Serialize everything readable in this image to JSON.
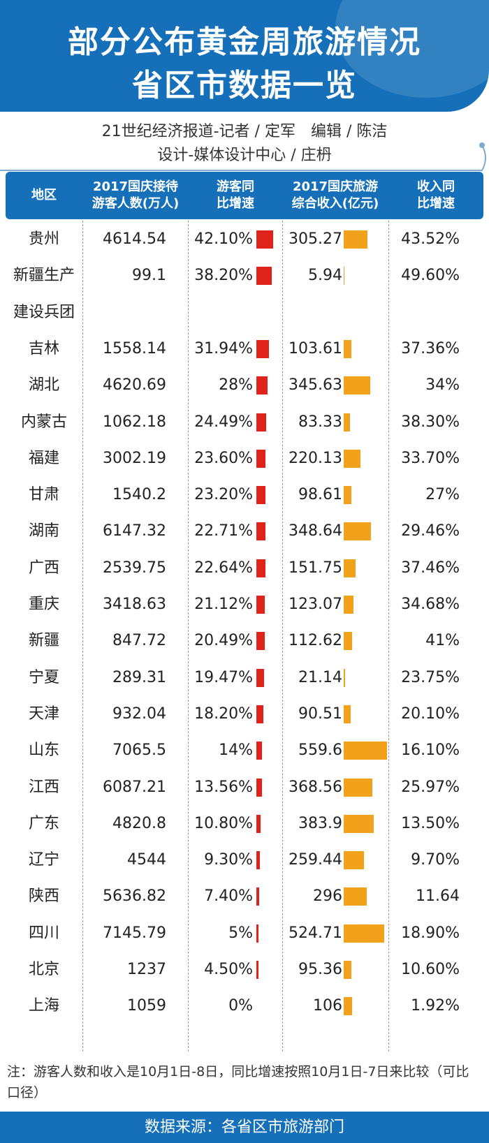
{
  "title": {
    "line1": "部分公布黄金周旅游情况",
    "line2": "省区市数据一览"
  },
  "credits": {
    "line1": "21世纪经济报道-记者 / 定军　编辑 / 陈洁",
    "line2": "设计-媒体设计中心 / 庄枬"
  },
  "table": {
    "headers": {
      "region": "地区",
      "visitors": "2017国庆接待\n游客人数(万人)",
      "visitors_growth": "游客同\n比增速",
      "revenue": "2017国庆旅游\n综合收入(亿元)",
      "revenue_growth": "收入同\n比增速"
    },
    "colors": {
      "header_bg": "#1670b9",
      "visitor_bar": "#e0231a",
      "revenue_bar": "#f2a11a"
    },
    "rows": [
      {
        "region": "贵州",
        "region_line2": "",
        "visitors": "4614.54",
        "visitors_growth": "42.10%",
        "visitors_growth_value": 42.1,
        "revenue": "305.27",
        "revenue_value": 305.27,
        "revenue_growth": "43.52%"
      },
      {
        "region": "新疆生产",
        "region_line2": "建设兵团",
        "visitors": "99.1",
        "visitors_growth": "38.20%",
        "visitors_growth_value": 38.2,
        "revenue": "5.94",
        "revenue_value": 5.94,
        "revenue_growth": "49.60%"
      },
      {
        "region": "吉林",
        "region_line2": "",
        "visitors": "1558.14",
        "visitors_growth": "31.94%",
        "visitors_growth_value": 31.94,
        "revenue": "103.61",
        "revenue_value": 103.61,
        "revenue_growth": "37.36%"
      },
      {
        "region": "湖北",
        "region_line2": "",
        "visitors": "4620.69",
        "visitors_growth": "28%",
        "visitors_growth_value": 28,
        "revenue": "345.63",
        "revenue_value": 345.63,
        "revenue_growth": "34%"
      },
      {
        "region": "内蒙古",
        "region_line2": "",
        "visitors": "1062.18",
        "visitors_growth": "24.49%",
        "visitors_growth_value": 24.49,
        "revenue": "83.33",
        "revenue_value": 83.33,
        "revenue_growth": "38.30%"
      },
      {
        "region": "福建",
        "region_line2": "",
        "visitors": "3002.19",
        "visitors_growth": "23.60%",
        "visitors_growth_value": 23.6,
        "revenue": "220.13",
        "revenue_value": 220.13,
        "revenue_growth": "33.70%"
      },
      {
        "region": "甘肃",
        "region_line2": "",
        "visitors": "1540.2",
        "visitors_growth": "23.20%",
        "visitors_growth_value": 23.2,
        "revenue": "98.61",
        "revenue_value": 98.61,
        "revenue_growth": "27%"
      },
      {
        "region": "湖南",
        "region_line2": "",
        "visitors": "6147.32",
        "visitors_growth": "22.71%",
        "visitors_growth_value": 22.71,
        "revenue": "348.64",
        "revenue_value": 348.64,
        "revenue_growth": "29.46%"
      },
      {
        "region": "广西",
        "region_line2": "",
        "visitors": "2539.75",
        "visitors_growth": "22.64%",
        "visitors_growth_value": 22.64,
        "revenue": "151.75",
        "revenue_value": 151.75,
        "revenue_growth": "37.46%"
      },
      {
        "region": "重庆",
        "region_line2": "",
        "visitors": "3418.63",
        "visitors_growth": "21.12%",
        "visitors_growth_value": 21.12,
        "revenue": "123.07",
        "revenue_value": 123.07,
        "revenue_growth": "34.68%"
      },
      {
        "region": "新疆",
        "region_line2": "",
        "visitors": "847.72",
        "visitors_growth": "20.49%",
        "visitors_growth_value": 20.49,
        "revenue": "112.62",
        "revenue_value": 112.62,
        "revenue_growth": "41%"
      },
      {
        "region": "宁夏",
        "region_line2": "",
        "visitors": "289.31",
        "visitors_growth": "19.47%",
        "visitors_growth_value": 19.47,
        "revenue": "21.14",
        "revenue_value": 21.14,
        "revenue_growth": "23.75%"
      },
      {
        "region": "天津",
        "region_line2": "",
        "visitors": "932.04",
        "visitors_growth": "18.20%",
        "visitors_growth_value": 18.2,
        "revenue": "90.51",
        "revenue_value": 90.51,
        "revenue_growth": "20.10%"
      },
      {
        "region": "山东",
        "region_line2": "",
        "visitors": "7065.5",
        "visitors_growth": "14%",
        "visitors_growth_value": 14,
        "revenue": "559.6",
        "revenue_value": 559.6,
        "revenue_growth": "16.10%"
      },
      {
        "region": "江西",
        "region_line2": "",
        "visitors": "6087.21",
        "visitors_growth": "13.56%",
        "visitors_growth_value": 13.56,
        "revenue": "368.56",
        "revenue_value": 368.56,
        "revenue_growth": "25.97%"
      },
      {
        "region": "广东",
        "region_line2": "",
        "visitors": "4820.8",
        "visitors_growth": "10.80%",
        "visitors_growth_value": 10.8,
        "revenue": "383.9",
        "revenue_value": 383.9,
        "revenue_growth": "13.50%"
      },
      {
        "region": "辽宁",
        "region_line2": "",
        "visitors": "4544",
        "visitors_growth": "9.30%",
        "visitors_growth_value": 9.3,
        "revenue": "259.44",
        "revenue_value": 259.44,
        "revenue_growth": "9.70%"
      },
      {
        "region": "陕西",
        "region_line2": "",
        "visitors": "5636.82",
        "visitors_growth": "7.40%",
        "visitors_growth_value": 7.4,
        "revenue": "296",
        "revenue_value": 296,
        "revenue_growth": "11.64"
      },
      {
        "region": "四川",
        "region_line2": "",
        "visitors": "7145.79",
        "visitors_growth": "5%",
        "visitors_growth_value": 5,
        "revenue": "524.71",
        "revenue_value": 524.71,
        "revenue_growth": "18.90%"
      },
      {
        "region": "北京",
        "region_line2": "",
        "visitors": "1237",
        "visitors_growth": "4.50%",
        "visitors_growth_value": 4.5,
        "revenue": "95.36",
        "revenue_value": 95.36,
        "revenue_growth": "10.60%"
      },
      {
        "region": "上海",
        "region_line2": "",
        "visitors": "1059",
        "visitors_growth": "0%",
        "visitors_growth_value": 0,
        "revenue": "106",
        "revenue_value": 106,
        "revenue_growth": "1.92%"
      }
    ]
  },
  "note": "注：游客人数和收入是10月1日-8日，同比增速按照10月1日-7日来比较（可比口径）",
  "source": "数据来源：各省区市旅游部门"
}
